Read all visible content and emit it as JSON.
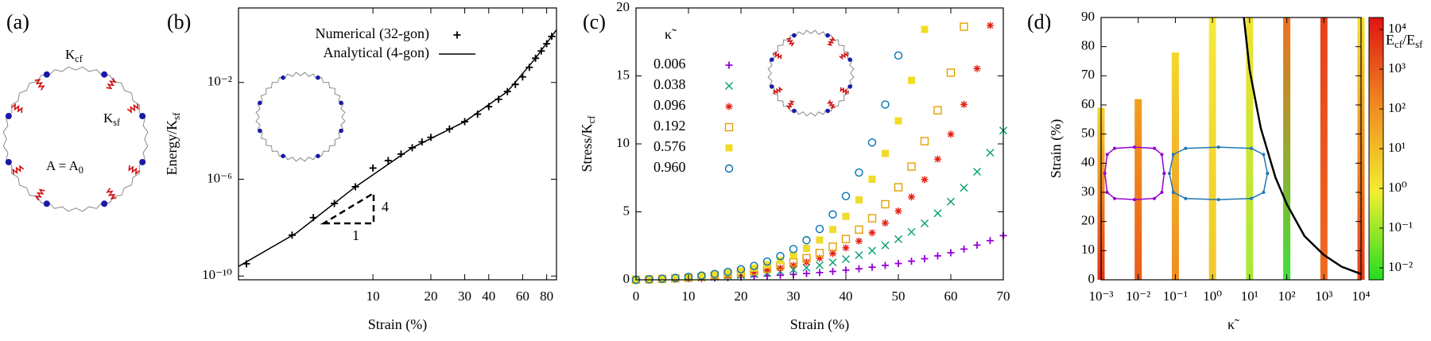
{
  "diagram": {
    "panel_label": "(a)",
    "labels": [
      {
        "text": "K",
        "sub": "cf"
      },
      {
        "text": "K",
        "sub": "sf"
      },
      {
        "text": "A = A",
        "sub": "0"
      }
    ]
  },
  "chart_data": [
    {
      "type": "line",
      "panel_label": "(b)",
      "xlabel": "Strain (%)",
      "ylabel": {
        "text": "Energy/K",
        "sub": "sf"
      },
      "log_x": true,
      "log_y": true,
      "xlim": [
        2,
        90
      ],
      "ylim": [
        7e-11,
        12
      ],
      "xticks": [
        10,
        20,
        30,
        40,
        60,
        80
      ],
      "yticks": [
        {
          "value": 1e-10,
          "label": "10⁻¹⁰"
        },
        {
          "value": 1e-06,
          "label": "10⁻⁶"
        },
        {
          "value": 0.01,
          "label": "10⁻²"
        }
      ],
      "legend": "upper left",
      "series": [
        {
          "name": "Numerical (32-gon)",
          "color": "#000000",
          "marker": "+",
          "x": [
            2.2,
            3.8,
            4.9,
            6.3,
            8.1,
            10,
            12,
            14,
            16,
            18,
            20,
            25,
            30,
            35,
            40,
            45,
            50,
            55,
            60,
            65,
            70,
            75,
            80,
            85
          ],
          "values": [
            3.2e-10,
            4.9e-09,
            2.6e-08,
            1e-07,
            4.9e-07,
            2.9e-06,
            5.9e-06,
            1.1e-05,
            2e-05,
            3.5e-05,
            5.4e-05,
            0.00012,
            0.00024,
            0.00049,
            0.001,
            0.002,
            0.0042,
            0.0083,
            0.017,
            0.042,
            0.1,
            0.2,
            0.4,
            0.8
          ]
        },
        {
          "name": "Analytical (4-gon)",
          "color": "#000000",
          "line": true,
          "x": [
            2,
            4,
            8,
            16,
            30,
            50,
            70,
            90
          ],
          "values": [
            2.5e-10,
            6e-09,
            4.5e-07,
            2e-05,
            0.00024,
            0.0042,
            0.1,
            1.5
          ]
        }
      ],
      "slope_triangle": {
        "rise": 4,
        "run": 1
      }
    },
    {
      "type": "scatter",
      "panel_label": "(c)",
      "xlabel": "Strain (%)",
      "ylabel": {
        "text": "Stress/K",
        "sub": "cf"
      },
      "xlim": [
        0,
        70
      ],
      "ylim": [
        0,
        20
      ],
      "xticks": [
        0,
        10,
        20,
        30,
        40,
        50,
        60,
        70
      ],
      "yticks": [
        0,
        5,
        10,
        15,
        20
      ],
      "legend": "upper left",
      "legend_title": "κ̃",
      "x": [
        0,
        2.5,
        5,
        7.5,
        10,
        12.5,
        15,
        17.5,
        20,
        22.5,
        25,
        27.5,
        30,
        32.5,
        35,
        37.5,
        40,
        42.5,
        45,
        47.5,
        50,
        52.5,
        55,
        57.5,
        60,
        62.5,
        65,
        67.5,
        70
      ],
      "series": [
        {
          "name": "0.006",
          "color": "#9400d3",
          "marker": "+",
          "values": [
            0,
            0.016,
            0.034,
            0.054,
            0.077,
            0.103,
            0.131,
            0.164,
            0.2,
            0.241,
            0.286,
            0.338,
            0.396,
            0.46,
            0.533,
            0.615,
            0.707,
            0.81,
            0.927,
            1.06,
            1.2,
            1.37,
            1.55,
            1.76,
            1.99,
            2.26,
            2.55,
            2.88,
            3.25
          ]
        },
        {
          "name": "0.038",
          "color": "#009e73",
          "marker": "x",
          "values": [
            0,
            0.022,
            0.049,
            0.079,
            0.115,
            0.158,
            0.207,
            0.265,
            0.333,
            0.413,
            0.507,
            0.616,
            0.745,
            0.895,
            1.07,
            1.28,
            1.52,
            1.81,
            2.14,
            2.53,
            2.99,
            3.52,
            4.15,
            4.89,
            5.75,
            6.77,
            7.95,
            9.35,
            10.98
          ]
        },
        {
          "name": "0.096",
          "color": "#e51e10",
          "marker": "*",
          "values": [
            0,
            0.026,
            0.058,
            0.096,
            0.142,
            0.197,
            0.263,
            0.342,
            0.438,
            0.553,
            0.691,
            0.857,
            1.06,
            1.3,
            1.59,
            1.93,
            2.35,
            2.85,
            3.46,
            4.18,
            5.06,
            6.1,
            7.37,
            8.88,
            10.71,
            12.9,
            15.54,
            18.71,
            null
          ]
        },
        {
          "name": "0.192",
          "color": "#e69f00",
          "marker": "square-open",
          "values": [
            0,
            0.029,
            0.063,
            0.106,
            0.158,
            0.221,
            0.299,
            0.393,
            0.508,
            0.648,
            0.82,
            1.03,
            1.28,
            1.59,
            1.97,
            2.44,
            3.0,
            3.69,
            4.53,
            5.56,
            6.81,
            8.33,
            10.2,
            12.47,
            15.24,
            18.62,
            null,
            null,
            null
          ]
        },
        {
          "name": "0.576",
          "color": "#f0dc28",
          "marker": "square",
          "values": [
            0,
            0.033,
            0.074,
            0.126,
            0.19,
            0.271,
            0.373,
            0.5,
            0.66,
            0.859,
            1.11,
            1.42,
            1.82,
            2.31,
            2.93,
            3.7,
            4.67,
            5.88,
            7.4,
            9.3,
            11.69,
            14.68,
            18.42,
            null,
            null,
            null,
            null,
            null,
            null
          ]
        },
        {
          "name": "0.960",
          "color": "#0072b2",
          "marker": "circle-open",
          "values": [
            0,
            0.036,
            0.081,
            0.139,
            0.213,
            0.307,
            0.427,
            0.58,
            0.775,
            1.02,
            1.34,
            1.74,
            2.26,
            2.91,
            3.74,
            4.81,
            6.16,
            7.89,
            10.1,
            12.9,
            16.5,
            null,
            null,
            null,
            null,
            null,
            null,
            null,
            null
          ]
        }
      ]
    },
    {
      "type": "bar",
      "panel_label": "(d)",
      "xlabel": "κ̃",
      "ylabel": "Strain (%)",
      "log_x": true,
      "xlim": [
        0.001,
        10000
      ],
      "ylim": [
        0,
        90
      ],
      "xticks": [
        {
          "value": 0.001,
          "label": "10⁻³"
        },
        {
          "value": 0.01,
          "label": "10⁻²"
        },
        {
          "value": 0.1,
          "label": "10⁻¹"
        },
        {
          "value": 1,
          "label": "10⁰"
        },
        {
          "value": 10,
          "label": "10¹"
        },
        {
          "value": 100,
          "label": "10²"
        },
        {
          "value": 1000,
          "label": "10³"
        },
        {
          "value": 10000,
          "label": "10⁴"
        }
      ],
      "yticks": [
        0,
        10,
        20,
        30,
        40,
        50,
        60,
        70,
        80,
        90
      ],
      "bars": {
        "x": [
          0.001,
          0.01,
          0.1,
          1,
          10,
          100,
          1000,
          10000
        ],
        "values": [
          59,
          62,
          78,
          90,
          90,
          90,
          90,
          90
        ],
        "colors": [
          [
            "#e8301a",
            "#f2d52a"
          ],
          [
            "#ea5a1c",
            "#f0a020"
          ],
          [
            "#f08c22",
            "#f3d82c"
          ],
          [
            "#f2c82a",
            "#f6ea38"
          ],
          [
            "#a8e83a",
            "#f2e232"
          ],
          [
            "#3fe03c",
            "#f0701e"
          ],
          [
            "#f06a1e",
            "#e8401a"
          ],
          [
            "#e83a1a",
            "#f2e030"
          ]
        ]
      },
      "series": [
        {
          "color": "#9400d3",
          "line": true,
          "marker": "dot",
          "x": [
            0.05,
            0.0433,
            0.0273,
            0.0079,
            0.00231,
            0.00146,
            0.00126,
            0.00146,
            0.00231,
            0.0079,
            0.0273,
            0.0433,
            0.05
          ],
          "values": [
            36.5,
            43,
            45.1,
            45.5,
            45.1,
            43,
            36.5,
            30,
            27.9,
            27.5,
            27.9,
            30,
            36.5
          ]
        },
        {
          "color": "#1f77b4",
          "line": true,
          "marker": "dot",
          "x": [
            30.2,
            23.7,
            11.1,
            1.45,
            0.189,
            0.0883,
            0.0692,
            0.0883,
            0.189,
            1.45,
            11.1,
            23.7,
            30.2
          ],
          "values": [
            36.5,
            43,
            45.1,
            45.5,
            45.1,
            43,
            36.5,
            30,
            27.9,
            27.5,
            27.9,
            30,
            36.5
          ]
        },
        {
          "color": "#000000",
          "line": true,
          "width": 2.5,
          "x": [
            7,
            10,
            20,
            50,
            100,
            300,
            1000,
            3000,
            10000
          ],
          "values": [
            90,
            72,
            52,
            35,
            26,
            15,
            8.5,
            4.5,
            2.0
          ]
        }
      ],
      "colorbar": {
        "label": [
          {
            "text": "E",
            "sub": "cf"
          },
          {
            "text": "/E",
            "sub": "sf"
          }
        ],
        "log": true,
        "clim": [
          0.005,
          20000
        ],
        "ticks": [
          {
            "value": 0.01,
            "label": "10⁻²"
          },
          {
            "value": 0.1,
            "label": "10⁻¹"
          },
          {
            "value": 1,
            "label": "10⁰"
          },
          {
            "value": 10,
            "label": "10¹"
          },
          {
            "value": 100,
            "label": "10²"
          },
          {
            "value": 1000,
            "label": "10³"
          },
          {
            "value": 10000,
            "label": "10⁴"
          }
        ],
        "colors": [
          "#22dd22",
          "#f2ee30",
          "#f08a20",
          "#e01414"
        ]
      }
    }
  ]
}
